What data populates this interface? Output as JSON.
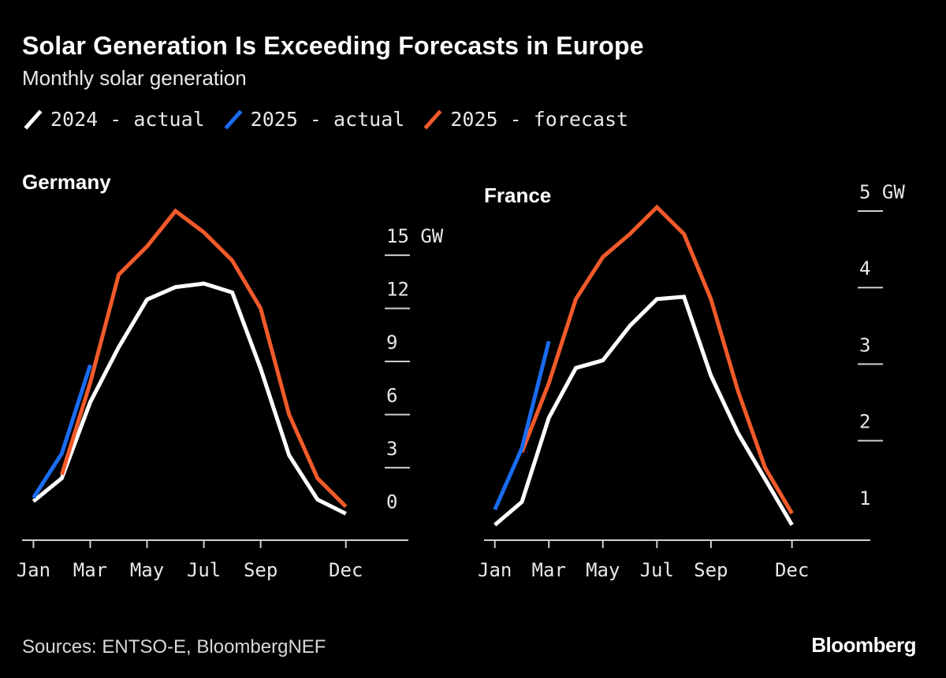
{
  "title": "Solar Generation Is Exceeding Forecasts in Europe",
  "subtitle": "Monthly solar generation",
  "legend": [
    {
      "label": "2024 - actual",
      "color": "#ffffff"
    },
    {
      "label": "2025 - actual",
      "color": "#1a6cf0"
    },
    {
      "label": "2025 - forecast",
      "color": "#f25a2b"
    }
  ],
  "source": "Sources: ENTSO-E, BloombergNEF",
  "brand": "Bloomberg",
  "chart_data": [
    {
      "type": "line",
      "title": "Germany",
      "unit": "GW",
      "x_ticks": [
        {
          "month": 1,
          "label": "Jan"
        },
        {
          "month": 3,
          "label": "Mar"
        },
        {
          "month": 5,
          "label": "May"
        },
        {
          "month": 7,
          "label": "Jul"
        },
        {
          "month": 9,
          "label": "Sep"
        },
        {
          "month": 12,
          "label": "Dec"
        }
      ],
      "xlim": [
        0.6,
        14.2
      ],
      "ylim": [
        -1.1,
        17.5
      ],
      "y_ticks": [
        {
          "value": 0,
          "label": "0"
        },
        {
          "value": 3,
          "label": "3"
        },
        {
          "value": 6,
          "label": "6"
        },
        {
          "value": 9,
          "label": "9"
        },
        {
          "value": 12,
          "label": "12"
        },
        {
          "value": 15,
          "label": "15 GW"
        }
      ],
      "series": [
        {
          "name": "2024 - actual",
          "color": "#ffffff",
          "x": [
            1,
            2,
            3,
            4,
            5,
            6,
            7,
            8,
            9,
            10,
            11,
            12
          ],
          "y": [
            1.1,
            2.4,
            6.7,
            9.8,
            12.5,
            13.2,
            13.4,
            12.9,
            8.6,
            3.7,
            1.2,
            0.4
          ]
        },
        {
          "name": "2025 - actual",
          "color": "#1a6cf0",
          "x": [
            1,
            2,
            3
          ],
          "y": [
            1.3,
            3.8,
            8.8
          ]
        },
        {
          "name": "2025 - forecast",
          "color": "#f25a2b",
          "x": [
            2,
            3,
            4,
            5,
            6,
            7,
            8,
            9,
            10,
            11,
            12
          ],
          "y": [
            2.6,
            7.8,
            13.9,
            15.5,
            17.5,
            16.3,
            14.7,
            12.0,
            6.0,
            2.4,
            0.8
          ]
        }
      ]
    },
    {
      "type": "line",
      "title": "France",
      "unit": "GW",
      "x_ticks": [
        {
          "month": 1,
          "label": "Jan"
        },
        {
          "month": 3,
          "label": "Mar"
        },
        {
          "month": 5,
          "label": "May"
        },
        {
          "month": 7,
          "label": "Jul"
        },
        {
          "month": 9,
          "label": "Sep"
        },
        {
          "month": 12,
          "label": "Dec"
        }
      ],
      "xlim": [
        0.6,
        14.9
      ],
      "ylim": [
        0.7,
        5.0
      ],
      "y_ticks": [
        {
          "value": 1,
          "label": "1"
        },
        {
          "value": 2,
          "label": "2"
        },
        {
          "value": 3,
          "label": "3"
        },
        {
          "value": 4,
          "label": "4"
        },
        {
          "value": 5,
          "label": "5 GW"
        }
      ],
      "series": [
        {
          "name": "2024 - actual",
          "color": "#ffffff",
          "x": [
            1,
            2,
            3,
            4,
            5,
            6,
            7,
            8,
            9,
            10,
            11,
            12
          ],
          "y": [
            0.9,
            1.2,
            2.3,
            2.95,
            3.05,
            3.5,
            3.85,
            3.88,
            2.85,
            2.1,
            1.5,
            0.9
          ]
        },
        {
          "name": "2025 - actual",
          "color": "#1a6cf0",
          "x": [
            1,
            2,
            3
          ],
          "y": [
            1.1,
            1.9,
            3.3
          ]
        },
        {
          "name": "2025 - forecast",
          "color": "#f25a2b",
          "x": [
            2,
            3,
            4,
            5,
            6,
            7,
            8,
            9,
            10,
            11,
            12
          ],
          "y": [
            1.85,
            2.75,
            3.85,
            4.4,
            4.7,
            5.05,
            4.7,
            3.85,
            2.65,
            1.65,
            1.05
          ]
        }
      ]
    }
  ]
}
